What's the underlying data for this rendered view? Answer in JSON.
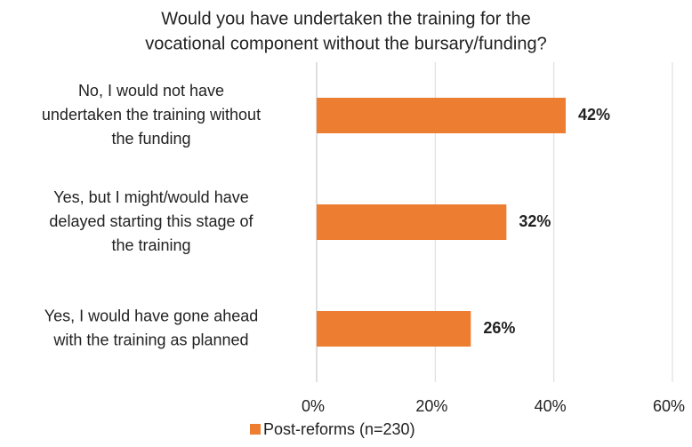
{
  "chart_data": {
    "type": "barh",
    "title": [
      "Would you have undertaken the training for the",
      "vocational component without the bursary/funding?"
    ],
    "categories": [
      [
        "No, I would not have",
        "undertaken the training without",
        "the funding"
      ],
      [
        "Yes, but I might/would have",
        "delayed starting this stage of",
        "the training"
      ],
      [
        "Yes, I would have gone ahead",
        "with the training as planned"
      ]
    ],
    "series": [
      {
        "name": "Post-reforms (n=230)",
        "color": "#ed7d31",
        "values": [
          42,
          32,
          26
        ],
        "value_labels": [
          "42%",
          "32%",
          "26%"
        ]
      }
    ],
    "xlim": [
      0,
      60
    ],
    "xticks": [
      {
        "value": 0,
        "label": "0%"
      },
      {
        "value": 20,
        "label": "20%"
      },
      {
        "value": 40,
        "label": "40%"
      },
      {
        "value": 60,
        "label": "60%"
      }
    ],
    "grid": true,
    "legend": "bottom"
  }
}
